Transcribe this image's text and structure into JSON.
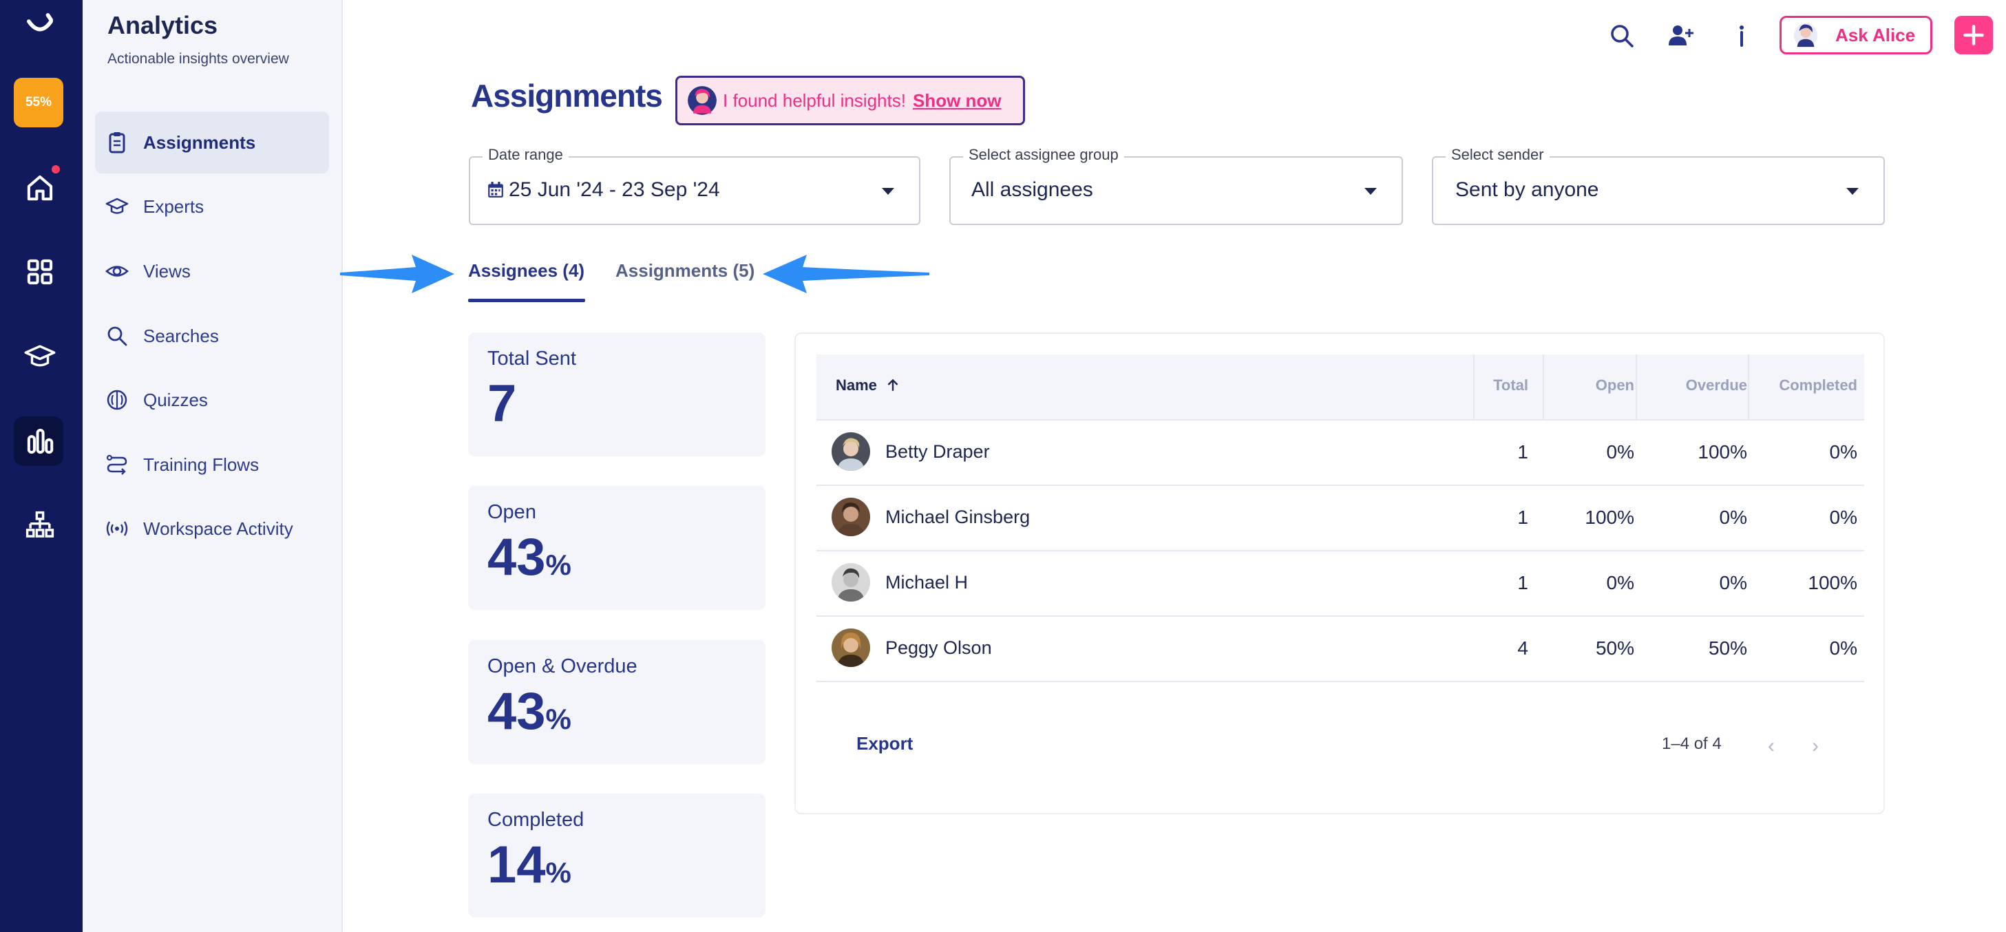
{
  "sidebar": {
    "title": "Analytics",
    "subtitle": "Actionable insights overview",
    "items": [
      {
        "label": "Assignments",
        "icon": "clipboard-icon",
        "active": true
      },
      {
        "label": "Experts",
        "icon": "graduation-cap-icon"
      },
      {
        "label": "Views",
        "icon": "eye-icon"
      },
      {
        "label": "Searches",
        "icon": "search-icon"
      },
      {
        "label": "Quizzes",
        "icon": "brain-icon"
      },
      {
        "label": "Training Flows",
        "icon": "flow-icon"
      },
      {
        "label": "Workspace Activity",
        "icon": "broadcast-icon"
      }
    ]
  },
  "rail": {
    "progress": "55%",
    "icons": [
      "logo-icon",
      "home-icon",
      "apps-grid-icon",
      "graduation-cap-icon",
      "analytics-chart-icon",
      "org-chart-icon"
    ]
  },
  "header": {
    "ask_label": "Ask Alice"
  },
  "page": {
    "title": "Assignments",
    "insight_text": "I found helpful insights!",
    "insight_link": "Show now"
  },
  "filters": {
    "date_range": {
      "label": "Date range",
      "value": "25 Jun '24 - 23 Sep '24"
    },
    "assignee_group": {
      "label": "Select assignee group",
      "value": "All assignees"
    },
    "sender": {
      "label": "Select sender",
      "value": "Sent by anyone"
    }
  },
  "tabs": [
    {
      "label": "Assignees (4)",
      "active": true
    },
    {
      "label": "Assignments (5)",
      "active": false
    }
  ],
  "stats": [
    {
      "label": "Total Sent",
      "value": "7",
      "unit": ""
    },
    {
      "label": "Open",
      "value": "43",
      "unit": "%"
    },
    {
      "label": "Open & Overdue",
      "value": "43",
      "unit": "%"
    },
    {
      "label": "Completed",
      "value": "14",
      "unit": "%"
    }
  ],
  "table": {
    "columns": [
      "Name",
      "Total",
      "Open",
      "Overdue",
      "Completed"
    ],
    "rows": [
      {
        "name": "Betty Draper",
        "total": "1",
        "open": "0%",
        "overdue": "100%",
        "completed": "0%"
      },
      {
        "name": "Michael Ginsberg",
        "total": "1",
        "open": "100%",
        "overdue": "0%",
        "completed": "0%"
      },
      {
        "name": "Michael H",
        "total": "1",
        "open": "0%",
        "overdue": "0%",
        "completed": "100%"
      },
      {
        "name": "Peggy Olson",
        "total": "4",
        "open": "50%",
        "overdue": "50%",
        "completed": "0%"
      }
    ],
    "export_label": "Export",
    "pagination": "1–4 of 4"
  },
  "colors": {
    "rail": "#101a5c",
    "accent": "#27348b",
    "pink": "#ee2f84",
    "badge": "#f9a21b",
    "annotation_arrow": "#2b8df5"
  }
}
